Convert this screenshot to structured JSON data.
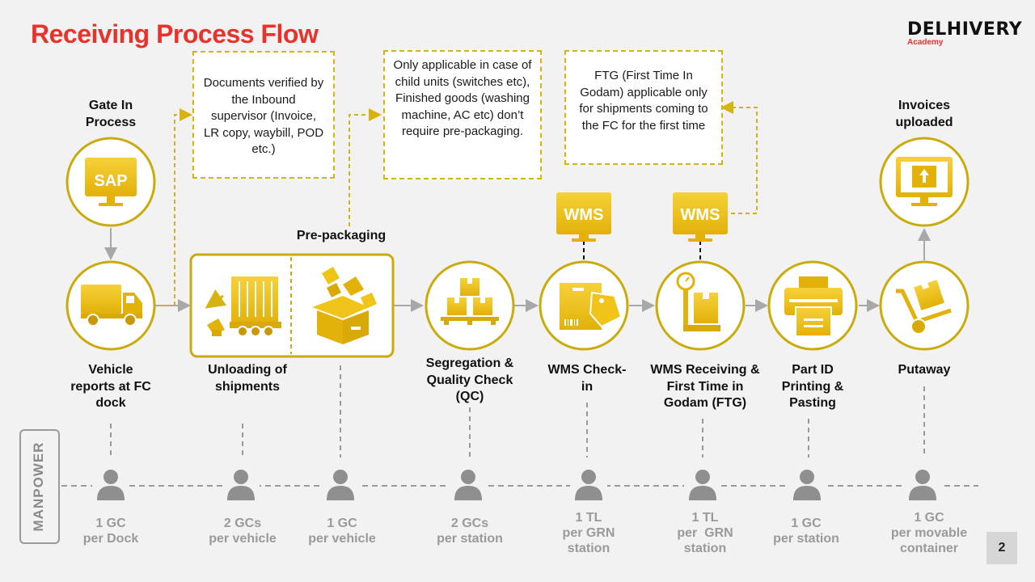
{
  "header": {
    "title": "Receiving Process Flow",
    "logo_main": "DELHIVERY",
    "logo_sub": "Academy"
  },
  "notes": {
    "documents": "Documents verified by the Inbound supervisor (Invoice, LR copy, waybill, POD etc.)",
    "child_units": "Only applicable in case of child units (switches etc), Finished goods (washing machine, AC etc) don’t require pre-packaging.",
    "ftg": "FTG (First Time In Godam) applicable only for shipments coming to the FC for the first time"
  },
  "top_labels": {
    "gate_in": "Gate In Process",
    "invoices": "Invoices uploaded",
    "pre_packaging": "Pre-packaging"
  },
  "icons": {
    "sap": "SAP",
    "wms_checkin": "WMS",
    "wms_receiving": "WMS"
  },
  "steps": [
    {
      "label": "Vehicle reports at FC dock",
      "icon": "truck-icon"
    },
    {
      "label": "Unloading of shipments",
      "icon": "unloading-icon"
    },
    {
      "label": "Segregation & Quality Check (QC)",
      "icon": "boxes-icon"
    },
    {
      "label": "WMS Check-in",
      "icon": "package-tag-icon"
    },
    {
      "label": "WMS Receiving & First Time in Godam (FTG)",
      "icon": "scale-icon"
    },
    {
      "label": "Part ID Printing & Pasting",
      "icon": "printer-icon"
    },
    {
      "label": "Putaway",
      "icon": "hand-truck-icon"
    }
  ],
  "manpower": {
    "label": "MANPOWER",
    "items": [
      {
        "line1": "1 GC",
        "line2": "per Dock"
      },
      {
        "line1": "2 GCs",
        "line2": "per vehicle"
      },
      {
        "line1": "1 GC",
        "line2": "per vehicle"
      },
      {
        "line1": "2 GCs",
        "line2": "per station"
      },
      {
        "line1": "1 TL",
        "line2": "per GRN",
        "line3": "station"
      },
      {
        "line1": "1 TL",
        "line2": "per  GRN",
        "line3": "station"
      },
      {
        "line1": "1 GC",
        "line2": "per station"
      },
      {
        "line1": "1 GC",
        "line2": "per movable",
        "line3": "container"
      }
    ]
  },
  "page_number": "2",
  "colors": {
    "accent": "#f0c419",
    "circle_border": "#c9ab0c",
    "title_red": "#e8332d",
    "gray": "#9a9a9a"
  }
}
